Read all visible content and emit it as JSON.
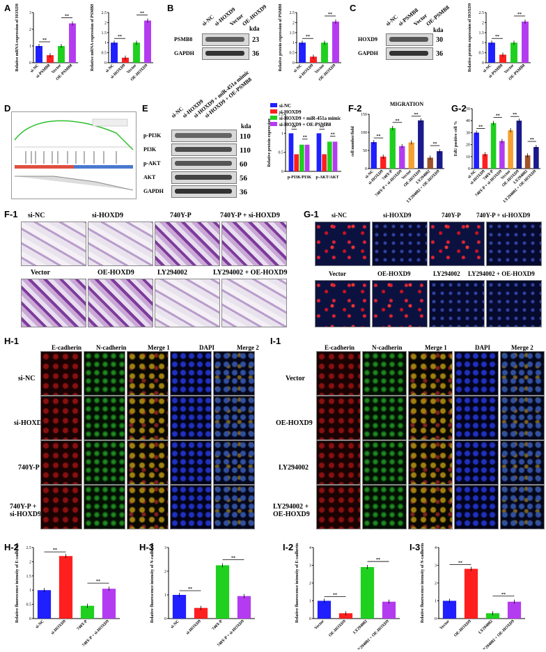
{
  "panels": {
    "A": "A",
    "B": "B",
    "C": "C",
    "D": "D",
    "E": "E",
    "F1": "F-1",
    "F2": "F-2",
    "G1": "G-1",
    "G2": "G-2",
    "H1": "H-1",
    "H2": "H-2",
    "H3": "H-3",
    "I1": "I-1",
    "I2": "I-2",
    "I3": "I-3"
  },
  "blotB": {
    "lanes": [
      "si-NC",
      "si-HOXD9",
      "Vector",
      "OE-HOXD9"
    ],
    "kda": "kda",
    "rows": [
      {
        "name": "PSMB8",
        "kda": "23"
      },
      {
        "name": "GAPDH",
        "kda": "36"
      }
    ]
  },
  "blotC": {
    "lanes": [
      "si-NC",
      "si-PSMB8",
      "Vector",
      "OE-PSMB8"
    ],
    "kda": "kda",
    "rows": [
      {
        "name": "HOXD9",
        "kda": "30"
      },
      {
        "name": "GAPDH",
        "kda": "36"
      }
    ]
  },
  "blotE": {
    "lanes": [
      "si-NC",
      "si-HOXD9",
      "si-HOXD9 + miR-451a mimic",
      "si-HOXD9 + OE-PSMB8"
    ],
    "kda": "kda",
    "rows": [
      {
        "name": "p-PI3K",
        "kda": "110"
      },
      {
        "name": "PI3K",
        "kda": "110"
      },
      {
        "name": "p-AKT",
        "kda": "60"
      },
      {
        "name": "AKT",
        "kda": "56"
      },
      {
        "name": "GAPDH",
        "kda": "36"
      }
    ]
  },
  "gsea": {
    "legend_a": "",
    "legend_b": ""
  },
  "F1": {
    "row1": [
      "si-NC",
      "si-HOXD9",
      "740Y-P",
      "740Y-P + si-HOXD9"
    ],
    "row2": [
      "Vector",
      "OE-HOXD9",
      "LY294002",
      "LY294002 + OE-HOXD9"
    ]
  },
  "G1": {
    "row1": [
      "si-NC",
      "si-HOXD9",
      "740Y-P",
      "740Y-P + si-HOXD9"
    ],
    "row2": [
      "Vector",
      "OE-HOXD9",
      "LY294002",
      "LY294002 + OE-HOXD9"
    ]
  },
  "H1": {
    "cols": [
      "E-cadherin",
      "N-cadherin",
      "Merge 1",
      "DAPI",
      "Merge 2"
    ],
    "rows": [
      "si-NC",
      "si-HOXD9",
      "740Y-P",
      "740Y-P +\nsi-HOXD9"
    ]
  },
  "I1": {
    "cols": [
      "E-cadherin",
      "N-cadherin",
      "Merge 1",
      "DAPI",
      "Merge 2"
    ],
    "rows": [
      "Vector",
      "OE-HOXD9",
      "LY294002",
      "LY294002 +\nOE-HOXD9"
    ]
  },
  "sig": "**",
  "colors": {
    "blue": "#1f1fff",
    "red": "#ff1f1f",
    "green": "#1fd01f",
    "purple": "#b43cf0",
    "orange": "#f5a030",
    "darkred": "#a0522d",
    "navy": "#1a1a8c"
  },
  "chart_data": [
    {
      "id": "A1",
      "type": "bar",
      "ylabel": "Relative mRNA expression of HOXD9",
      "categories": [
        "si-NC",
        "si-PSMB8",
        "Vector",
        "OE-PSMB8"
      ],
      "values": [
        1.0,
        0.45,
        1.0,
        2.35
      ],
      "ylim": [
        0,
        3
      ],
      "yticks": [
        0,
        1,
        2,
        3
      ],
      "colors": [
        "blue",
        "red",
        "green",
        "purple"
      ]
    },
    {
      "id": "A2",
      "type": "bar",
      "ylabel": "Relative mRNA expression of PSMB8",
      "categories": [
        "si-NC",
        "si-HOXD9",
        "Vector",
        "OE-HOXD9"
      ],
      "values": [
        1.0,
        0.25,
        1.0,
        2.1
      ],
      "ylim": [
        0,
        2.5
      ],
      "yticks": [
        0,
        0.5,
        1.0,
        1.5,
        2.0,
        2.5
      ],
      "colors": [
        "blue",
        "red",
        "green",
        "purple"
      ]
    },
    {
      "id": "B",
      "type": "bar",
      "ylabel": "Relative protein expression of PSMB8",
      "categories": [
        "si-NC",
        "si-HOXD9",
        "Vector",
        "OE-HOXD9"
      ],
      "values": [
        1.0,
        0.3,
        1.0,
        2.05
      ],
      "ylim": [
        0,
        2.5
      ],
      "yticks": [
        0,
        0.5,
        1.0,
        1.5,
        2.0,
        2.5
      ],
      "colors": [
        "blue",
        "red",
        "green",
        "purple"
      ]
    },
    {
      "id": "C",
      "type": "bar",
      "ylabel": "Relative protein expression of HOXD9",
      "categories": [
        "si-NC",
        "si-PSMB8",
        "Vector",
        "OE-PSMB8"
      ],
      "values": [
        1.0,
        0.4,
        1.0,
        2.05
      ],
      "ylim": [
        0,
        2.5
      ],
      "yticks": [
        0,
        0.5,
        1.0,
        1.5,
        2.0,
        2.5
      ],
      "colors": [
        "blue",
        "red",
        "green",
        "purple"
      ]
    },
    {
      "id": "E",
      "type": "bar",
      "ylabel": "Relative protein expression",
      "categories": [
        "p-PI3K/PI3K",
        "p-AKT/AKT"
      ],
      "series": [
        {
          "name": "si-NC",
          "values": [
            1.0,
            1.0
          ]
        },
        {
          "name": "si-HOXD9",
          "values": [
            0.45,
            0.45
          ]
        },
        {
          "name": "si-HOXD9 + miR-451a mimic",
          "values": [
            0.7,
            0.78
          ]
        },
        {
          "name": "si-HOXD9 + OE-PSMB8",
          "values": [
            0.7,
            0.78
          ]
        }
      ],
      "ylim": [
        0,
        1.5
      ],
      "yticks": [
        0,
        0.5,
        1.0,
        1.5
      ],
      "colors": [
        "blue",
        "red",
        "green",
        "purple"
      ]
    },
    {
      "id": "F2",
      "type": "bar",
      "title": "MIGRATION",
      "ylabel": "cell number/field",
      "categories": [
        "si-NC",
        "si-HOXD9",
        "740Y-P",
        "740Y-P + si-HOXD9",
        "Vector",
        "OE-HOXD9",
        "LY294002",
        "LY294002 + OE-HOXD9"
      ],
      "values": [
        73,
        33,
        112,
        62,
        72,
        133,
        30,
        48
      ],
      "ylim": [
        0,
        150
      ],
      "yticks": [
        0,
        50,
        100,
        150
      ],
      "colors": [
        "blue",
        "red",
        "green",
        "purple",
        "orange",
        "navy",
        "darkred",
        "navy"
      ]
    },
    {
      "id": "G2",
      "type": "bar",
      "ylabel": "EdU positive cell %",
      "categories": [
        "si-NC",
        "si-HOXD9",
        "740Y-P",
        "740Y-P + si-HOXD9",
        "Vector",
        "OE-HOXD9",
        "LY294002",
        "LY294002 + OE-HOXD9"
      ],
      "values": [
        30,
        12,
        38,
        23,
        32,
        40,
        11,
        18
      ],
      "ylim": [
        0,
        50
      ],
      "yticks": [
        0,
        10,
        20,
        30,
        40,
        50
      ],
      "colors": [
        "blue",
        "red",
        "green",
        "purple",
        "orange",
        "navy",
        "darkred",
        "navy"
      ]
    },
    {
      "id": "H2",
      "type": "bar",
      "ylabel": "Relative fluorescence intensity of E-cadherin",
      "categories": [
        "si-NC",
        "si-HOXD9",
        "740Y-P",
        "740Y-P + si-HOXD9"
      ],
      "values": [
        1.0,
        2.2,
        0.45,
        1.05
      ],
      "ylim": [
        0,
        2.5
      ],
      "yticks": [
        0.0,
        0.5,
        1.0,
        1.5,
        2.0,
        2.5
      ],
      "colors": [
        "blue",
        "red",
        "green",
        "purple"
      ]
    },
    {
      "id": "H3",
      "type": "bar",
      "ylabel": "Relative fluorescence intensity of N-cadherin",
      "categories": [
        "si-NC",
        "si-HOXD9",
        "740Y-P",
        "740Y-P + si-HOXD9"
      ],
      "values": [
        1.0,
        0.45,
        2.25,
        0.95
      ],
      "ylim": [
        0,
        3
      ],
      "yticks": [
        0,
        1,
        2,
        3
      ],
      "colors": [
        "blue",
        "red",
        "green",
        "purple"
      ]
    },
    {
      "id": "I2",
      "type": "bar",
      "ylabel": "Relative fluorescence intensity of E-cadherin",
      "categories": [
        "Vector",
        "OE-HOXD9",
        "LY294002",
        "LY294002 + OE-HOXD9"
      ],
      "values": [
        1.0,
        0.3,
        2.9,
        0.95
      ],
      "ylim": [
        0,
        4
      ],
      "yticks": [
        0,
        1,
        2,
        3,
        4
      ],
      "colors": [
        "blue",
        "red",
        "green",
        "purple"
      ]
    },
    {
      "id": "I3",
      "type": "bar",
      "ylabel": "Relative fluorescence intensity of N-cadherin",
      "categories": [
        "Vector",
        "OE-HOXD9",
        "LY294002",
        "LY294002 + OE-HOXD9"
      ],
      "values": [
        1.0,
        2.8,
        0.3,
        0.95
      ],
      "ylim": [
        0,
        4
      ],
      "yticks": [
        0,
        1,
        2,
        3,
        4
      ],
      "colors": [
        "blue",
        "red",
        "green",
        "purple"
      ]
    }
  ]
}
